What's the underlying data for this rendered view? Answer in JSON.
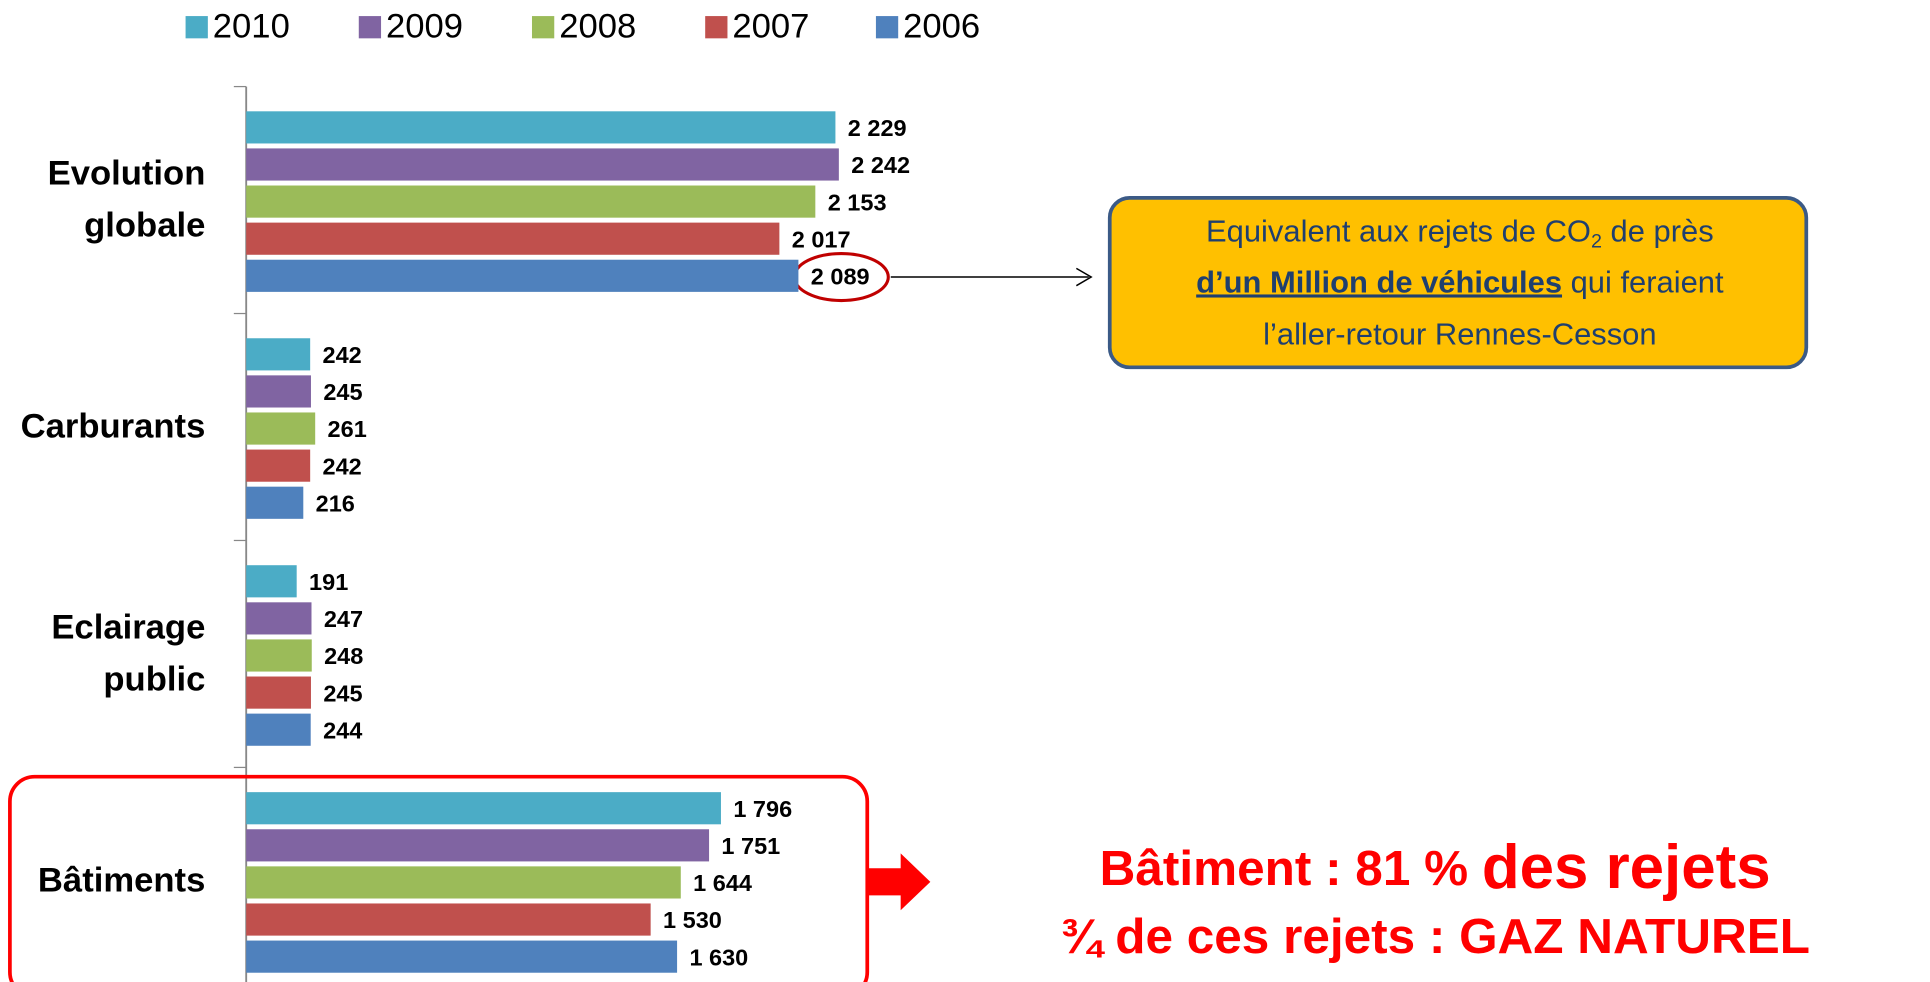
{
  "chart_data": {
    "type": "bar",
    "orientation": "horizontal",
    "categories": [
      "Evolution globale",
      "Carburants",
      "Eclairage public",
      "Bâtiments"
    ],
    "series": [
      {
        "name": "2010",
        "color": "#4bacc6",
        "values": [
          2229,
          242,
          191,
          1796
        ],
        "value_labels": [
          "2 229",
          "242",
          "191",
          "1 796"
        ]
      },
      {
        "name": "2009",
        "color": "#8064a2",
        "values": [
          2242,
          245,
          247,
          1751
        ],
        "value_labels": [
          "2 242",
          "245",
          "247",
          "1 751"
        ]
      },
      {
        "name": "2008",
        "color": "#9bbb59",
        "values": [
          2153,
          261,
          248,
          1644
        ],
        "value_labels": [
          "2 153",
          "261",
          "248",
          "1 644"
        ]
      },
      {
        "name": "2007",
        "color": "#c0504d",
        "values": [
          2017,
          242,
          245,
          1530
        ],
        "value_labels": [
          "2 017",
          "242",
          "245",
          "1 530"
        ]
      },
      {
        "name": "2006",
        "color": "#4f81bd",
        "values": [
          2089,
          216,
          244,
          1630
        ],
        "value_labels": [
          "2 089",
          "216",
          "244",
          "1 630"
        ]
      }
    ],
    "xlim": [
      0,
      6000
    ],
    "legend": "top",
    "annotations": {
      "callout": {
        "part1": "Equivalent aux rejets de CO",
        "sub": "2",
        "part2": " de près",
        "bold": "d’un Million de véhicules",
        "part3": " qui feraient",
        "part4": "l’aller-retour Rennes-Cesson"
      },
      "summary1a": "Bâtiment : 81 % ",
      "summary1b": "des rejets",
      "summary2": "¾ de ces rejets : GAZ NATUREL"
    }
  }
}
